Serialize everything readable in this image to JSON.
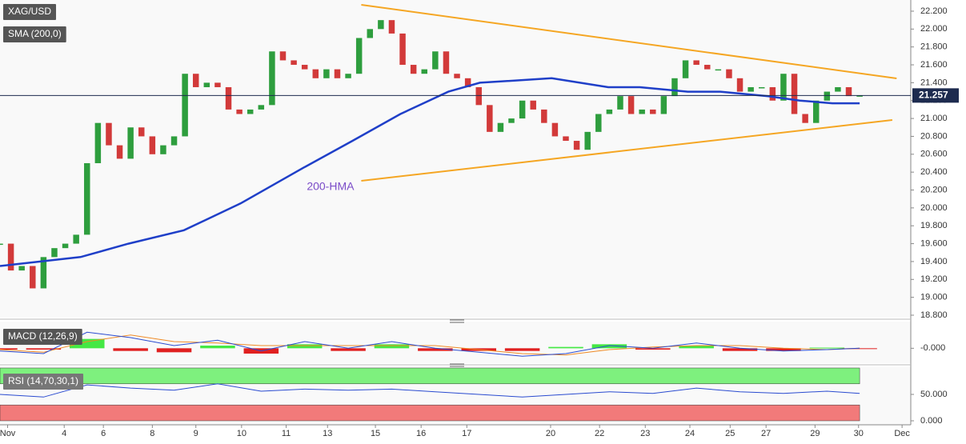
{
  "chart_data": [
    {
      "type": "candlestick",
      "title": "XAG/USD",
      "subtitle": "SMA (200,0)",
      "x": [
        0,
        1,
        2,
        3,
        4,
        5,
        6,
        7,
        8,
        9,
        10,
        11,
        12,
        13,
        14,
        15,
        16,
        17,
        18,
        19,
        20,
        21,
        22,
        23,
        24,
        25,
        26,
        27,
        28,
        29,
        30,
        31,
        32,
        33,
        34,
        35,
        36,
        37,
        38,
        39,
        40,
        41,
        42,
        43,
        44,
        45,
        46,
        47,
        48,
        49,
        50,
        51,
        52,
        53,
        54,
        55,
        56,
        57,
        58,
        59,
        60,
        61,
        62,
        63,
        64,
        65,
        66,
        67,
        68,
        69,
        70,
        71,
        72,
        73,
        74,
        75,
        76,
        77,
        78,
        79
      ],
      "series": [
        {
          "name": "XAG/USD",
          "up_color": "#2e9e3e",
          "down_color": "#d23a3a",
          "values": [
            19.6,
            19.3,
            19.35,
            19.1,
            19.45,
            19.55,
            19.6,
            19.7,
            20.5,
            20.95,
            20.7,
            20.55,
            20.9,
            20.8,
            20.6,
            20.7,
            20.8,
            21.5,
            21.35,
            21.4,
            21.35,
            21.1,
            21.05,
            21.1,
            21.15,
            21.75,
            21.65,
            21.6,
            21.55,
            21.45,
            21.55,
            21.45,
            21.5,
            21.9,
            22.0,
            22.1,
            21.95,
            21.6,
            21.5,
            21.55,
            21.75,
            21.5,
            21.45,
            21.35,
            21.15,
            20.85,
            20.95,
            21.0,
            21.2,
            21.1,
            20.95,
            20.8,
            20.75,
            20.65,
            20.85,
            21.05,
            21.1,
            21.25,
            21.05,
            21.1,
            21.05,
            21.25,
            21.45,
            21.65,
            21.6,
            21.55,
            21.55,
            21.45,
            21.3,
            21.35,
            21.35,
            21.2,
            21.5,
            21.05,
            20.95,
            21.2,
            21.3,
            21.35,
            21.25,
            21.257
          ]
        }
      ],
      "hma": {
        "name": "200-HMA",
        "color": "#1f3fc8",
        "x": [
          0,
          7.4,
          11.8,
          16.9,
          22.1,
          27.9,
          32.4,
          36.8,
          41.2,
          44.1,
          50.7,
          55.9,
          58.8,
          63.2,
          66.2,
          70.6,
          73.5,
          76.5,
          79
        ],
        "values": [
          19.35,
          19.45,
          19.6,
          19.75,
          20.05,
          20.45,
          20.75,
          21.05,
          21.3,
          21.4,
          21.45,
          21.35,
          21.35,
          21.3,
          21.3,
          21.25,
          21.2,
          21.17,
          21.17
        ]
      },
      "trendline_color": "#f5a623",
      "trendlines": [
        {
          "x": [
            33.2,
            82.4
          ],
          "values": [
            22.271,
            21.448
          ]
        },
        {
          "x": [
            33.2,
            82.0
          ],
          "values": [
            20.303,
            20.983
          ]
        }
      ],
      "last_price": {
        "value": 21.257,
        "label": "21.257",
        "color": "#1d2b4f"
      },
      "xlim": [
        0,
        83.7
      ],
      "xticks": [
        {
          "value": 0.7,
          "label": "Nov"
        },
        {
          "value": 5.9,
          "label": "4"
        },
        {
          "value": 9.5,
          "label": "6"
        },
        {
          "value": 14,
          "label": "8"
        },
        {
          "value": 18,
          "label": "9"
        },
        {
          "value": 22.2,
          "label": "10"
        },
        {
          "value": 26.3,
          "label": "11"
        },
        {
          "value": 30.1,
          "label": "13"
        },
        {
          "value": 34.5,
          "label": "15"
        },
        {
          "value": 38.7,
          "label": "16"
        },
        {
          "value": 42.9,
          "label": "17"
        },
        {
          "value": 50.6,
          "label": "20"
        },
        {
          "value": 55.1,
          "label": "22"
        },
        {
          "value": 59.3,
          "label": "23"
        },
        {
          "value": 63.4,
          "label": "24"
        },
        {
          "value": 67.1,
          "label": "25"
        },
        {
          "value": 70.4,
          "label": "27"
        },
        {
          "value": 74.9,
          "label": "29"
        },
        {
          "value": 78.9,
          "label": "30"
        },
        {
          "value": 82.9,
          "label": "Dec"
        }
      ],
      "ylim": [
        18.773,
        22.325
      ],
      "yticks": [
        {
          "value": 18.8,
          "label": "18.800"
        },
        {
          "value": 19.0,
          "label": "19.000"
        },
        {
          "value": 19.2,
          "label": "19.200"
        },
        {
          "value": 19.4,
          "label": "19.400"
        },
        {
          "value": 19.6,
          "label": "19.600"
        },
        {
          "value": 19.8,
          "label": "19.800"
        },
        {
          "value": 20.0,
          "label": "20.000"
        },
        {
          "value": 20.2,
          "label": "20.200"
        },
        {
          "value": 20.4,
          "label": "20.400"
        },
        {
          "value": 20.6,
          "label": "20.600"
        },
        {
          "value": 20.8,
          "label": "20.800"
        },
        {
          "value": 21.0,
          "label": "21.000"
        },
        {
          "value": 21.2,
          "label": "21.200"
        },
        {
          "value": 21.4,
          "label": "21.400"
        },
        {
          "value": 21.6,
          "label": "21.600"
        },
        {
          "value": 21.8,
          "label": "21.800"
        },
        {
          "value": 22.0,
          "label": "22.000"
        },
        {
          "value": 22.2,
          "label": "22.200"
        }
      ]
    },
    {
      "type": "macd",
      "title": "MACD (12,26,9)",
      "x": [
        0,
        4,
        8,
        12,
        16,
        20,
        24,
        28,
        32,
        36,
        40,
        44,
        48,
        52,
        56,
        60,
        64,
        68,
        72,
        76,
        79
      ],
      "macd": {
        "color": "#2a4bd0",
        "values": [
          -0.02,
          -0.04,
          0.12,
          0.08,
          0.02,
          0.06,
          -0.02,
          0.05,
          0.0,
          0.05,
          0.0,
          -0.03,
          -0.06,
          -0.04,
          0.02,
          0.0,
          0.04,
          0.0,
          -0.02,
          -0.01,
          0.0
        ]
      },
      "signal": {
        "color": "#f08a24",
        "values": [
          -0.01,
          -0.03,
          0.05,
          0.1,
          0.05,
          0.04,
          0.02,
          0.02,
          0.02,
          0.02,
          0.02,
          -0.01,
          -0.04,
          -0.05,
          -0.01,
          0.01,
          0.02,
          0.02,
          0.0,
          -0.01,
          0.0
        ]
      },
      "histogram": {
        "up_color": "#44e844",
        "down_color": "#e02020",
        "values": [
          -0.01,
          -0.01,
          0.07,
          -0.02,
          -0.03,
          0.02,
          -0.04,
          0.03,
          -0.02,
          0.03,
          -0.02,
          -0.02,
          -0.02,
          0.01,
          0.03,
          -0.01,
          0.02,
          -0.02,
          -0.02,
          0.005,
          -0.005
        ]
      },
      "ylim": [
        -0.1,
        0.2
      ],
      "yticks": [
        {
          "value": 0,
          "label": "-0.000"
        }
      ]
    },
    {
      "type": "rsi",
      "title": "RSI (14,70,30,1)",
      "x": [
        0,
        4,
        8,
        12,
        16,
        20,
        24,
        28,
        32,
        36,
        40,
        44,
        48,
        52,
        56,
        60,
        64,
        68,
        72,
        76,
        79
      ],
      "color": "#2a4bd0",
      "values": [
        50,
        45,
        68,
        62,
        58,
        70,
        56,
        60,
        58,
        60,
        55,
        50,
        45,
        50,
        55,
        52,
        62,
        55,
        52,
        56,
        52
      ],
      "bands": [
        {
          "from": 70,
          "to": 100,
          "color": "#7ef07e"
        },
        {
          "from": 0,
          "to": 30,
          "color": "#f27a7a"
        }
      ],
      "ylim": [
        -7.6,
        101.5
      ],
      "yticks": [
        {
          "value": 50,
          "label": "50.000"
        },
        {
          "value": 0,
          "label": "0.000"
        }
      ]
    }
  ]
}
